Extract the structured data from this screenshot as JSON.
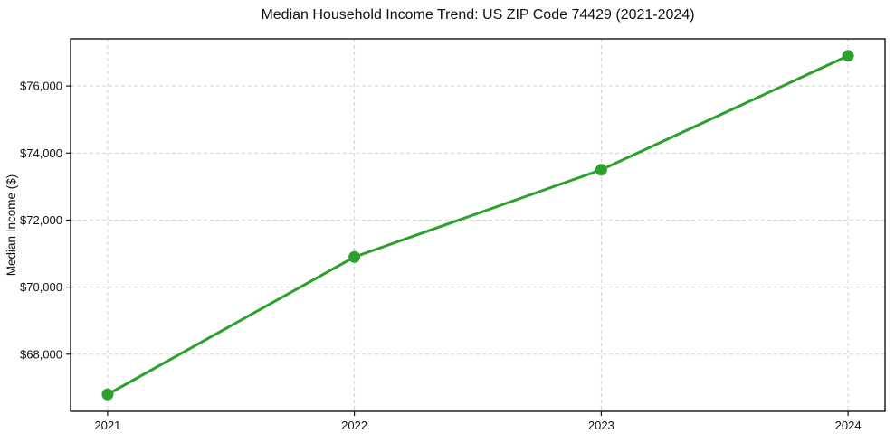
{
  "figure": {
    "background": "#ffffff",
    "text_color": "#111111"
  },
  "chart_data": {
    "type": "line",
    "title": "Median Household Income Trend: US ZIP Code 74429 (2021-2024)",
    "xlabel": "",
    "ylabel": "Median Income ($)",
    "x": [
      2021,
      2022,
      2023,
      2024
    ],
    "series": [
      {
        "name": "median-household-income",
        "values": [
          66800,
          70900,
          73500,
          76900
        ],
        "color": "#2ca02c",
        "marker": "circle",
        "marker_radius": 6.5,
        "line_width": 3
      }
    ],
    "xlim": [
      2020.85,
      2024.15
    ],
    "ylim": [
      66295,
      77405
    ],
    "x_ticks": {
      "values": [
        2021,
        2022,
        2023,
        2024
      ],
      "labels": [
        "2021",
        "2022",
        "2023",
        "2024"
      ]
    },
    "y_ticks": {
      "values": [
        68000,
        70000,
        72000,
        74000,
        76000
      ],
      "labels": [
        "$68,000",
        "$70,000",
        "$72,000",
        "$74,000",
        "$76,000"
      ]
    },
    "grid": true,
    "grid_color": "#cccccc",
    "grid_style": "dashed",
    "axis_frame_color": "#000000",
    "legend": "none"
  }
}
